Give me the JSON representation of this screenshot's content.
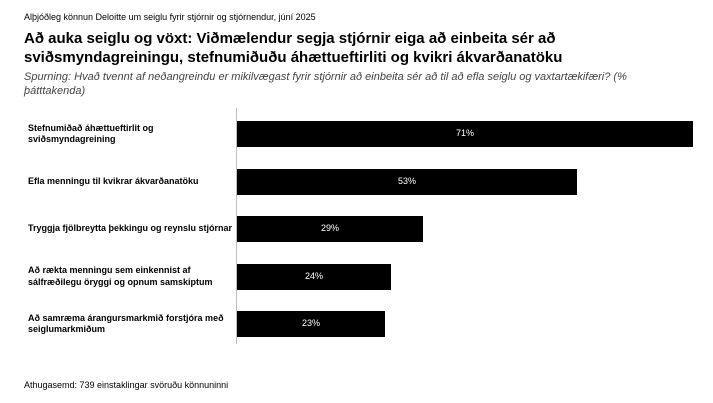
{
  "source": "Alþjóðleg könnun Deloitte um seiglu fyrir stjórnir og stjórnendur, júní 2025",
  "headline": "Að auka seiglu og vöxt: Viðmælendur segja stjórnir eiga að einbeita sér að sviðsmyndagreiningu, stefnumiðuðu áhættueftirliti og kvikri ákvarðanatöku",
  "subtitle": "Spurning: Hvað tvennt af neðangreindu er mikilvægast fyrir stjórnir að einbeita sér að til að efla seiglu og vaxtartækifæri? (% þátttakenda)",
  "footnote": "Athugasemd: 739 einstaklingar svöruðu könnuninni",
  "chart_data": {
    "type": "bar",
    "orientation": "horizontal",
    "categories": [
      "Stefnumiðað áhættueftirlit og sviðsmyndagreining",
      "Efla menningu til kvikrar ákvarðanatöku",
      "Tryggja fjölbreytta þekkingu og reynslu stjórnar",
      "Að rækta menningu sem einkennist af sálfræðilegu öryggi og opnum samskiptum",
      "Að samræma árangursmarkmið forstjóra með seiglumarkmiðum"
    ],
    "values": [
      71,
      53,
      29,
      24,
      23
    ],
    "value_labels": [
      "71%",
      "53%",
      "29%",
      "24%",
      "23%"
    ],
    "unit": "%",
    "xlim": [
      0,
      71
    ],
    "bar_color": "#000000",
    "label_color": "#ffffff"
  }
}
